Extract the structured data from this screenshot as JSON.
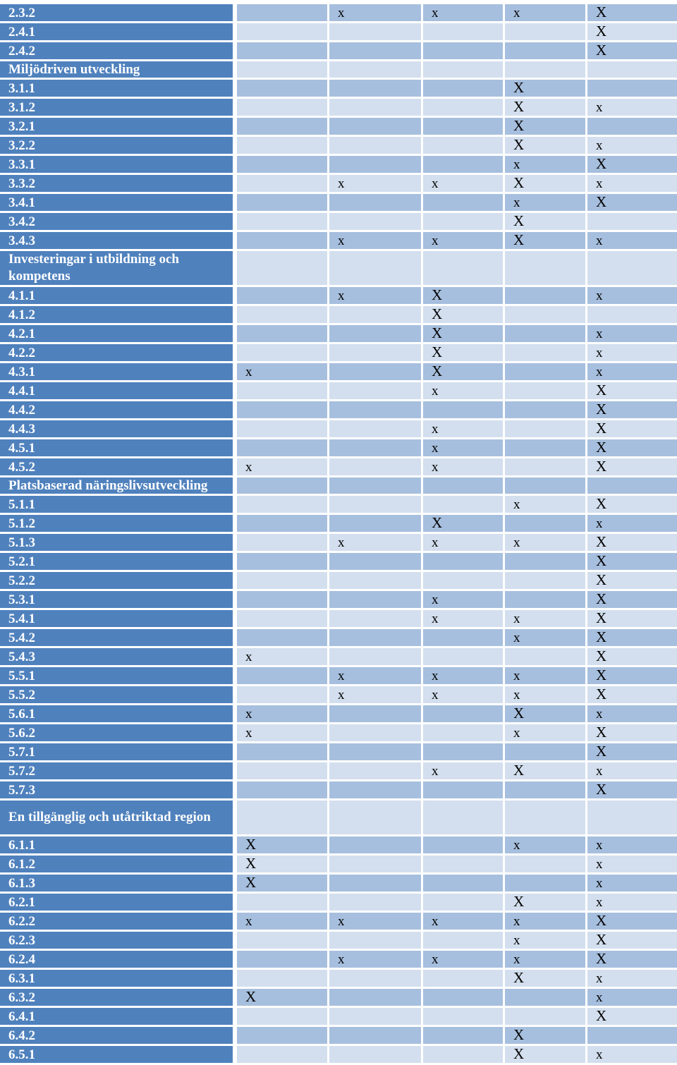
{
  "table": {
    "rows": [
      {
        "label": "2.3.2",
        "cells": [
          "",
          "x",
          "x",
          "x",
          "X"
        ]
      },
      {
        "label": "2.4.1",
        "cells": [
          "",
          "",
          "",
          "",
          "X"
        ]
      },
      {
        "label": "2.4.2",
        "cells": [
          "",
          "",
          "",
          "",
          "X"
        ]
      },
      {
        "label": "Miljödriven utveckling",
        "cells": [
          "",
          "",
          "",
          "",
          ""
        ]
      },
      {
        "label": "3.1.1",
        "cells": [
          "",
          "",
          "",
          "X",
          ""
        ]
      },
      {
        "label": "3.1.2",
        "cells": [
          "",
          "",
          "",
          "X",
          "x"
        ]
      },
      {
        "label": "3.2.1",
        "cells": [
          "",
          "",
          "",
          "X",
          ""
        ]
      },
      {
        "label": "3.2.2",
        "cells": [
          "",
          "",
          "",
          "X",
          "x"
        ]
      },
      {
        "label": "3.3.1",
        "cells": [
          "",
          "",
          "",
          "x",
          "X"
        ]
      },
      {
        "label": "3.3.2",
        "cells": [
          "",
          "x",
          "x",
          "X",
          "x"
        ]
      },
      {
        "label": "3.4.1",
        "cells": [
          "",
          "",
          "",
          "x",
          "X"
        ]
      },
      {
        "label": "3.4.2",
        "cells": [
          "",
          "",
          "",
          "X",
          ""
        ]
      },
      {
        "label": "3.4.3",
        "cells": [
          "",
          "x",
          "x",
          "X",
          "x"
        ]
      },
      {
        "label": "Investeringar i utbildning och kompetens",
        "cells": [
          "",
          "",
          "",
          "",
          ""
        ]
      },
      {
        "label": "4.1.1",
        "cells": [
          "",
          "x",
          "X",
          "",
          "x"
        ]
      },
      {
        "label": "4.1.2",
        "cells": [
          "",
          "",
          "X",
          "",
          ""
        ]
      },
      {
        "label": "4.2.1",
        "cells": [
          "",
          "",
          "X",
          "",
          "x"
        ]
      },
      {
        "label": "4.2.2",
        "cells": [
          "",
          "",
          "X",
          "",
          "x"
        ]
      },
      {
        "label": "4.3.1",
        "cells": [
          "x",
          "",
          "X",
          "",
          "x"
        ]
      },
      {
        "label": "4.4.1",
        "cells": [
          "",
          "",
          "x",
          "",
          "X"
        ]
      },
      {
        "label": "4.4.2",
        "cells": [
          "",
          "",
          "",
          "",
          "X"
        ]
      },
      {
        "label": "4.4.3",
        "cells": [
          "",
          "",
          "x",
          "",
          "X"
        ]
      },
      {
        "label": "4.5.1",
        "cells": [
          "",
          "",
          "x",
          "",
          "X"
        ]
      },
      {
        "label": "4.5.2",
        "cells": [
          "x",
          "",
          "x",
          "",
          "X"
        ]
      },
      {
        "label": "Platsbaserad näringslivsutveckling",
        "cells": [
          "",
          "",
          "",
          "",
          ""
        ]
      },
      {
        "label": "5.1.1",
        "cells": [
          "",
          "",
          "",
          "x",
          "X"
        ]
      },
      {
        "label": "5.1.2",
        "cells": [
          "",
          "",
          "X",
          "",
          "x"
        ]
      },
      {
        "label": "5.1.3",
        "cells": [
          "",
          "x",
          "x",
          "x",
          "X"
        ]
      },
      {
        "label": "5.2.1",
        "cells": [
          "",
          "",
          "",
          "",
          "X"
        ]
      },
      {
        "label": "5.2.2",
        "cells": [
          "",
          "",
          "",
          "",
          "X"
        ]
      },
      {
        "label": "5.3.1",
        "cells": [
          "",
          "",
          "x",
          "",
          "X"
        ]
      },
      {
        "label": "5.4.1",
        "cells": [
          "",
          "",
          "x",
          "x",
          "X"
        ]
      },
      {
        "label": "5.4.2",
        "cells": [
          "",
          "",
          "",
          "x",
          "X"
        ]
      },
      {
        "label": "5.4.3",
        "cells": [
          "x",
          "",
          "",
          "",
          "X"
        ]
      },
      {
        "label": "5.5.1",
        "cells": [
          "",
          "x",
          "x",
          "x",
          "X"
        ]
      },
      {
        "label": "5.5.2",
        "cells": [
          "",
          "x",
          "x",
          "x",
          "X"
        ]
      },
      {
        "label": "5.6.1",
        "cells": [
          "x",
          "",
          "",
          "X",
          "x"
        ]
      },
      {
        "label": "5.6.2",
        "cells": [
          "x",
          "",
          "",
          "x",
          "X"
        ]
      },
      {
        "label": "5.7.1",
        "cells": [
          "",
          "",
          "",
          "",
          "X"
        ]
      },
      {
        "label": "5.7.2",
        "cells": [
          "",
          "",
          "x",
          "X",
          "x"
        ]
      },
      {
        "label": "5.7.3",
        "cells": [
          "",
          "",
          "",
          "",
          "X"
        ]
      },
      {
        "label": "En tillgänglig och utåtriktad region",
        "cells": [
          "",
          "",
          "",
          "",
          ""
        ]
      },
      {
        "label": "6.1.1",
        "cells": [
          "X",
          "",
          "",
          "x",
          "x"
        ]
      },
      {
        "label": "6.1.2",
        "cells": [
          "X",
          "",
          "",
          "",
          "x"
        ]
      },
      {
        "label": "6.1.3",
        "cells": [
          "X",
          "",
          "",
          "",
          "x"
        ]
      },
      {
        "label": "6.2.1",
        "cells": [
          "",
          "",
          "",
          "X",
          "x"
        ]
      },
      {
        "label": "6.2.2",
        "cells": [
          "x",
          "x",
          "x",
          "x",
          "X"
        ]
      },
      {
        "label": "6.2.3",
        "cells": [
          "",
          "",
          "",
          "x",
          "X"
        ]
      },
      {
        "label": "6.2.4",
        "cells": [
          "",
          "x",
          "x",
          "x",
          "X"
        ]
      },
      {
        "label": "6.3.1",
        "cells": [
          "",
          "",
          "",
          "X",
          "x"
        ]
      },
      {
        "label": "6.3.2",
        "cells": [
          "X",
          "",
          "",
          "",
          "x"
        ]
      },
      {
        "label": "6.4.1",
        "cells": [
          "",
          "",
          "",
          "",
          "X"
        ]
      },
      {
        "label": "6.4.2",
        "cells": [
          "",
          "",
          "",
          "X",
          ""
        ]
      },
      {
        "label": "6.5.1",
        "cells": [
          "",
          "",
          "",
          "X",
          "x"
        ]
      }
    ]
  }
}
